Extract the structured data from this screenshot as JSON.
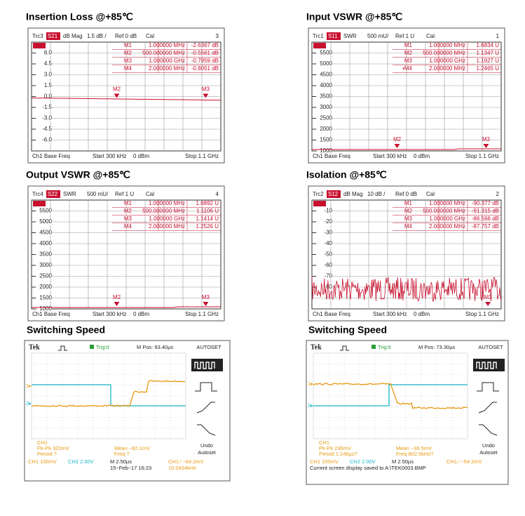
{
  "vna": [
    {
      "title": "Insertion Loss @+85℃",
      "header": {
        "trace": "Trc3",
        "param": "S21",
        "format": "dB Mag",
        "scale": "1.5 dB /",
        "ref": "Ref 0 dB",
        "cal": "Cal",
        "num": "3"
      },
      "y_labels": [
        "6.0",
        "4.5",
        "3.0",
        "1.5",
        "0.0",
        "-1.5",
        "-3.0",
        "-4.5",
        "-6.0"
      ],
      "markers": [
        {
          "id": "M1",
          "freq": "1.000000 MHz",
          "value": "-2.6367 dB"
        },
        {
          "id": "M2",
          "freq": "500.000000 MHz",
          "value": "-0.5561 dB"
        },
        {
          "id": "M3",
          "freq": "1.000000 GHz",
          "value": "-0.7959 dB"
        },
        {
          "id": "M4",
          "freq": "2.000000 MHz",
          "value": "-0.8051 dB"
        }
      ],
      "tags": [
        "M2",
        "M3"
      ],
      "footer": {
        "channel": "Ch1  Base Freq",
        "start": "Start  300 kHz",
        "power": "0 dBm",
        "stop": "Stop  1.1 GHz"
      }
    },
    {
      "title": "Input VSWR @+85℃",
      "header": {
        "trace": "Trc1",
        "param": "S11",
        "format": "SWR",
        "scale": "500 mU/",
        "ref": "Ref 1 U",
        "cal": "Cal",
        "num": "1"
      },
      "y_labels": [
        "5500",
        "5000",
        "4500",
        "4000",
        "3500",
        "3000",
        "2500",
        "2000",
        "1500",
        "1000"
      ],
      "markers": [
        {
          "id": "M1",
          "freq": "1.000000 MHz",
          "value": "1.6834 U"
        },
        {
          "id": "M2",
          "freq": "500.000000 MHz",
          "value": "1.1347 U"
        },
        {
          "id": "M3",
          "freq": "1.000000 GHz",
          "value": "1.1927 U"
        },
        {
          "id": "•M4",
          "freq": "2.000000 MHz",
          "value": "1.2465 U"
        }
      ],
      "tags": [
        "M2",
        "M3"
      ],
      "footer": {
        "channel": "Ch1  Base Freq",
        "start": "Start  300 kHz",
        "power": "0 dBm",
        "stop": "Stop  1.1 GHz"
      }
    },
    {
      "title": "Output VSWR @+85℃",
      "header": {
        "trace": "Trc4",
        "param": "S22",
        "format": "SWR",
        "scale": "500 mU/",
        "ref": "Ref 1 U",
        "cal": "Cal",
        "num": "4"
      },
      "y_labels": [
        "5500",
        "5000",
        "4500",
        "4000",
        "3500",
        "3000",
        "2500",
        "2000",
        "1500",
        "1000"
      ],
      "markers": [
        {
          "id": "M1",
          "freq": "1.000000 MHz",
          "value": "1.6892 U"
        },
        {
          "id": "M2",
          "freq": "500.000000 MHz",
          "value": "1.1106 U"
        },
        {
          "id": "M3",
          "freq": "1.000000 GHz",
          "value": "1.1414 U"
        },
        {
          "id": "M4",
          "freq": "2.000000 MHz",
          "value": "1.2526 U"
        }
      ],
      "tags": [
        "M2",
        "M3"
      ],
      "footer": {
        "channel": "Ch1  Base Freq",
        "start": "Start  300 kHz",
        "power": "0 dBm",
        "stop": "Stop  1.1 GHz"
      }
    },
    {
      "title": "Isolation @+85℃",
      "header": {
        "trace": "Trc2",
        "param": "S12",
        "format": "dB Mag",
        "scale": "10 dB /",
        "ref": "Ref 0 dB",
        "cal": "Cal",
        "num": "2"
      },
      "y_labels": [
        "-10",
        "-20",
        "-30",
        "-40",
        "-50",
        "-60",
        "-70",
        "-80"
      ],
      "markers": [
        {
          "id": "M1",
          "freq": "1.000000 MHz",
          "value": "-90.377 dB"
        },
        {
          "id": "M2",
          "freq": "500.000000 MHz",
          "value": "-91.315 dB"
        },
        {
          "id": "M3",
          "freq": "1.000000 GHz",
          "value": "-86.566 dB"
        },
        {
          "id": "M4",
          "freq": "2.000000 MHz",
          "value": "-87.757 dB"
        }
      ],
      "tags": [
        "M3"
      ],
      "footer": {
        "channel": "Ch1  Base Freq",
        "start": "Start  300 kHz",
        "power": "0 dBm",
        "stop": "Stop  1.1 GHz"
      }
    }
  ],
  "scope": [
    {
      "title": "Switching Speed",
      "brand": "Tek",
      "trig": "Trig'd",
      "mpos": "M Pos: 93.40µs",
      "autoset": "AUTOSET",
      "meas_ch": "CH1",
      "pkpk": "Pk-Pk 320mV",
      "period": "Period ?",
      "mean": "Mean −82.1mV",
      "freq": "Freq ?",
      "undo": "Undo",
      "undo2": "Autoset",
      "ch1": "CH1  100mV",
      "ch2": "CH2  2.00V",
      "timebase": "M 2.50µs",
      "trigger": "CH1 ∕ −64.2mV",
      "extra1": "15−Feb−17 16:23",
      "extra2": "10.0434kHz"
    },
    {
      "title": "Switching Speed",
      "brand": "Tek",
      "trig": "Trig'd",
      "mpos": "M Pos: 73.30µs",
      "autoset": "AUTOSET",
      "meas_ch": "CH1",
      "pkpk": "Pk-Pk 236mV",
      "period": "Period 1.246µs?",
      "mean": "Mean −36.5mV",
      "freq": "Freq 802.5kHz?",
      "undo": "Undo",
      "undo2": "Autoset",
      "ch1": "CH1  100mV",
      "ch2": "CH2  2.00V",
      "timebase": "M 2.50µs",
      "trigger": "CH1 ∕ −64.2mV",
      "extra1": "Current screen display saved to A:\\TEK0003.BMP",
      "extra2": ""
    }
  ]
}
